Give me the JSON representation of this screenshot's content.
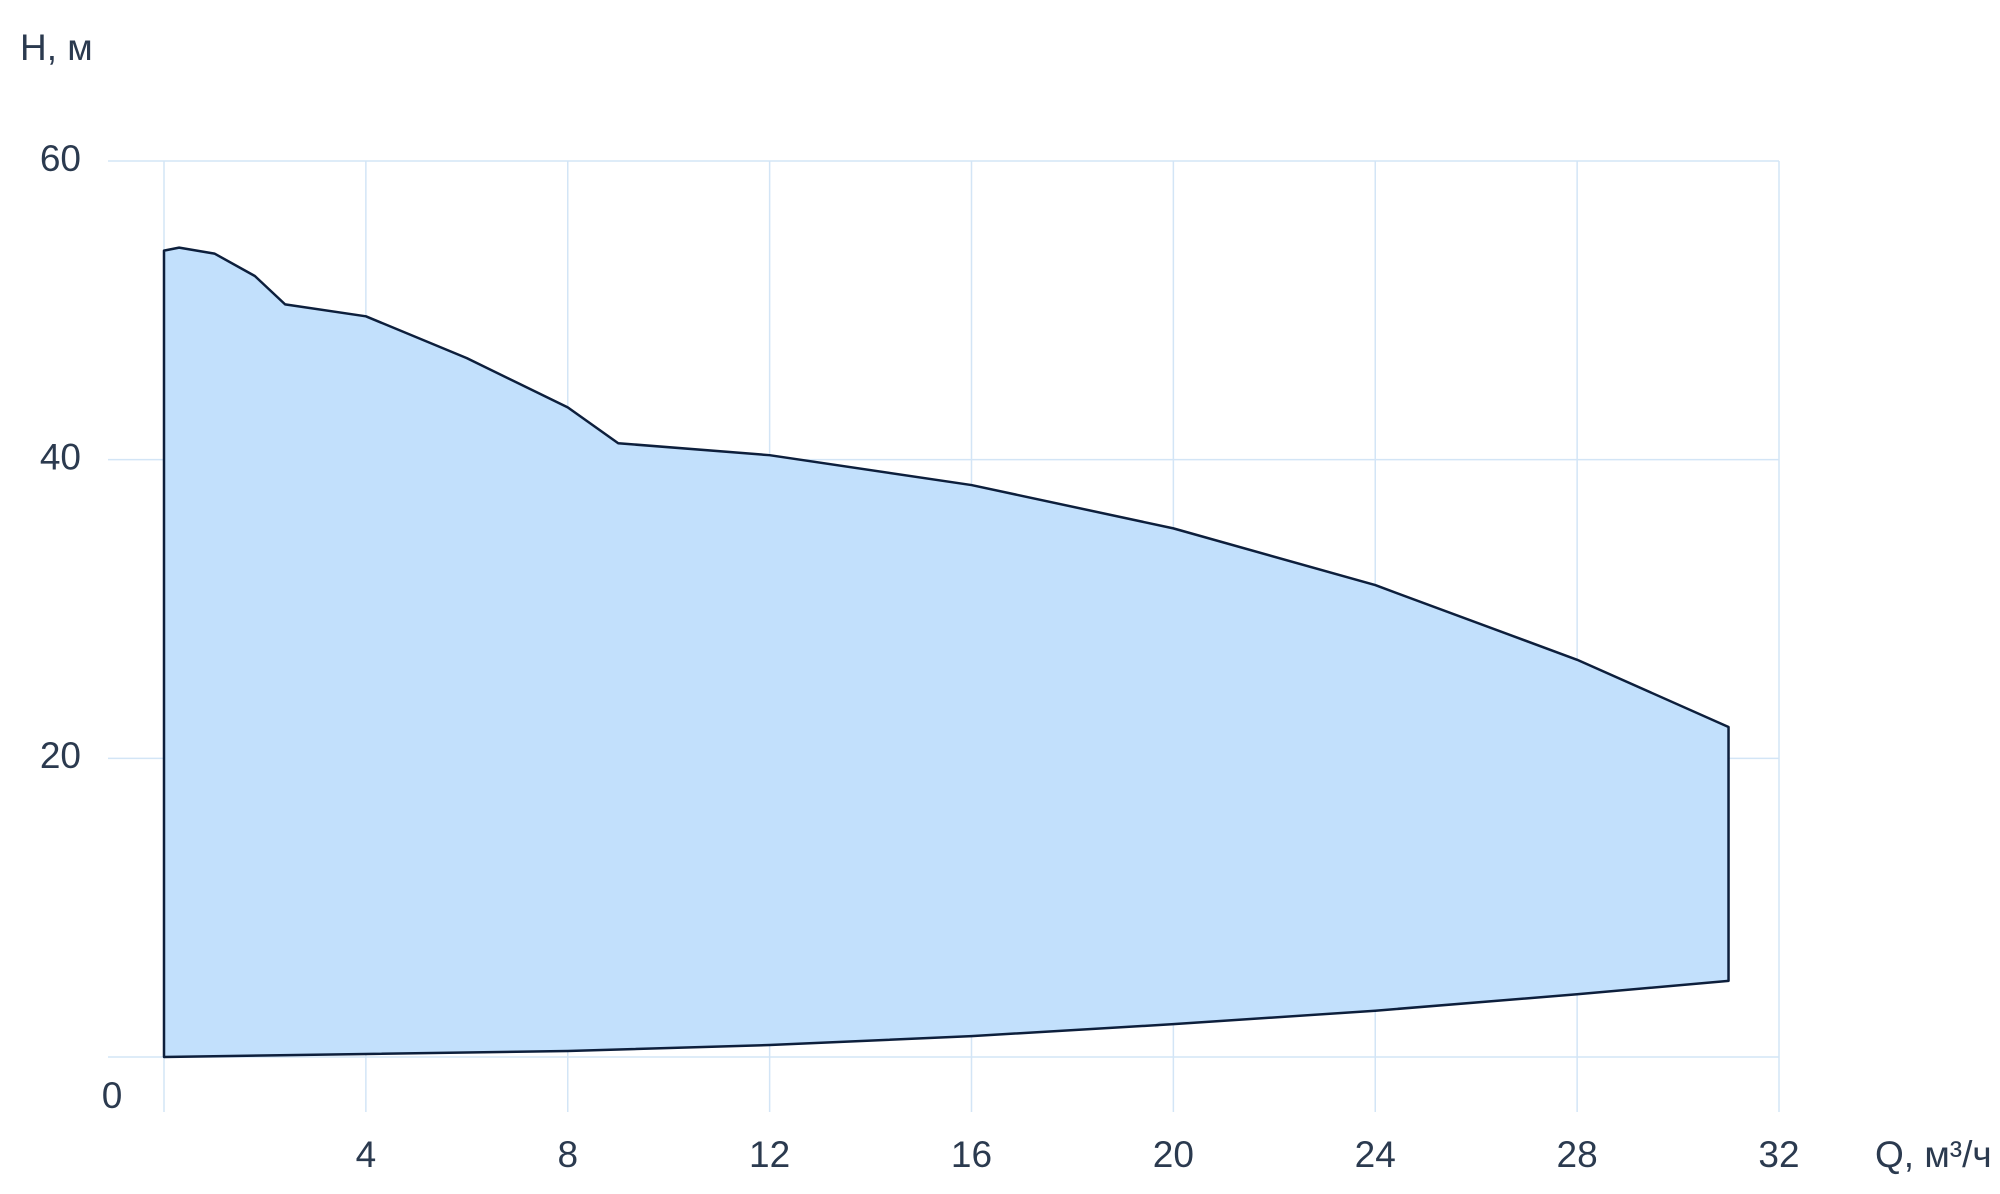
{
  "chart_data": {
    "type": "area",
    "x_label": "Q, м³/ч",
    "y_label": "H, м",
    "xlim": [
      0,
      32
    ],
    "ylim": [
      0,
      60
    ],
    "xticks": [
      0,
      4,
      8,
      12,
      16,
      20,
      24,
      28,
      32
    ],
    "yticks": [
      0,
      20,
      40,
      60
    ],
    "grid": true,
    "fill": "#c2e0fc",
    "stroke": "#0d1f3c",
    "upper": {
      "x": [
        0,
        0.3,
        1,
        1.8,
        2.4,
        4,
        6,
        8,
        9,
        12,
        16,
        20,
        24,
        28,
        31
      ],
      "values": [
        54,
        54.2,
        53.8,
        52.3,
        50.4,
        49.6,
        46.8,
        43.5,
        41.1,
        40.3,
        38.3,
        35.4,
        31.6,
        26.6,
        22.1
      ]
    },
    "lower": {
      "x": [
        0,
        4,
        8,
        12,
        16,
        20,
        24,
        28,
        31
      ],
      "values": [
        0,
        0.2,
        0.4,
        0.8,
        1.4,
        2.2,
        3.1,
        4.2,
        5.1
      ]
    }
  }
}
